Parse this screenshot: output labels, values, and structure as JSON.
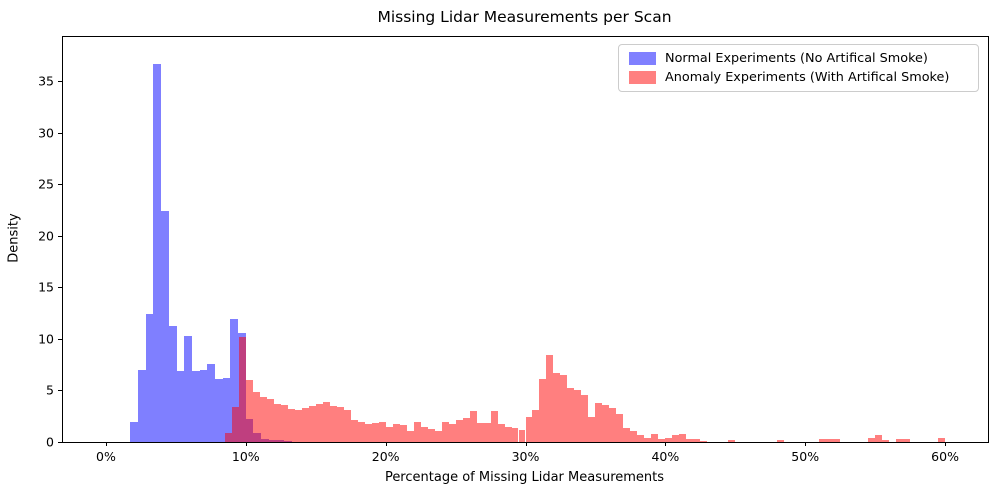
{
  "title": "Missing Lidar Measurements per Scan",
  "axes": {
    "xlabel": "Percentage of Missing Lidar Measurements",
    "ylabel": "Density",
    "x_ticks": [
      {
        "label": "0%",
        "value": 0
      },
      {
        "label": "10%",
        "value": 10
      },
      {
        "label": "20%",
        "value": 20
      },
      {
        "label": "30%",
        "value": 30
      },
      {
        "label": "40%",
        "value": 40
      },
      {
        "label": "50%",
        "value": 50
      },
      {
        "label": "60%",
        "value": 60
      }
    ],
    "y_ticks": [
      {
        "label": "0",
        "value": 0
      },
      {
        "label": "5",
        "value": 5
      },
      {
        "label": "10",
        "value": 10
      },
      {
        "label": "15",
        "value": 15
      },
      {
        "label": "20",
        "value": 20
      },
      {
        "label": "25",
        "value": 25
      },
      {
        "label": "30",
        "value": 30
      },
      {
        "label": "35",
        "value": 35
      }
    ]
  },
  "legend": {
    "items": [
      {
        "label": "Normal Experiments (No Artifical Smoke)",
        "color": "#8080ff"
      },
      {
        "label": "Anomaly Experiments (With Artifical Smoke)",
        "color": "#ff8080"
      }
    ]
  },
  "colors": {
    "normal_fill": "rgba(0,0,255,0.5)",
    "anomaly_fill": "rgba(255,0,0,0.5)",
    "overlap_appearance": "#bf4080",
    "normal_legend": "#8080ff",
    "anomaly_legend": "#ff8080"
  },
  "chart_data": {
    "type": "bar",
    "subtype": "histogram-density-overlaid",
    "title": "Missing Lidar Measurements per Scan",
    "xlabel": "Percentage of Missing Lidar Measurements",
    "ylabel": "Density",
    "xlim": [
      -3.07,
      63.07
    ],
    "ylim": [
      0,
      39.27
    ],
    "grid": false,
    "legend_position": "upper right",
    "x_unit": "percent",
    "series": [
      {
        "name": "Normal Experiments (No Artifical Smoke)",
        "color": "rgba(0,0,255,0.5)",
        "bin_start": 1.75,
        "bin_width": 0.55,
        "densities": [
          1.9,
          7.0,
          12.4,
          36.7,
          22.4,
          11.2,
          6.9,
          10.3,
          6.9,
          7.0,
          7.6,
          6.1,
          6.2,
          11.9,
          10.6,
          2.2,
          0.9,
          0.3,
          0.15,
          0.15,
          0.1
        ]
      },
      {
        "name": "Anomaly Experiments (With Artifical Smoke)",
        "color": "rgba(255,0,0,0.5)",
        "bin_start": 8.5,
        "bin_width": 0.5,
        "densities": [
          0.9,
          3.4,
          10.2,
          6.0,
          4.8,
          4.4,
          4.2,
          3.7,
          3.6,
          3.2,
          3.1,
          3.3,
          3.5,
          3.7,
          3.9,
          3.5,
          3.4,
          3.1,
          2.1,
          1.9,
          1.7,
          1.8,
          1.9,
          1.5,
          1.7,
          1.6,
          1.1,
          1.9,
          1.5,
          1.3,
          1.1,
          1.9,
          1.7,
          2.1,
          2.3,
          3.0,
          1.8,
          1.8,
          3.0,
          1.7,
          1.5,
          1.4,
          1.2,
          2.4,
          3.1,
          6.1,
          8.4,
          6.7,
          6.5,
          5.2,
          5.0,
          4.6,
          2.4,
          3.8,
          3.6,
          3.3,
          2.7,
          1.4,
          1.1,
          0.7,
          0.4,
          0.75,
          0.25,
          0.4,
          0.65,
          0.75,
          0.3,
          0.3,
          0.1,
          0,
          0,
          0,
          0.15,
          0,
          0,
          0,
          0,
          0,
          0,
          0.15,
          0,
          0,
          0,
          0,
          0,
          0.25,
          0.3,
          0.3,
          0,
          0,
          0,
          0,
          0.4,
          0.65,
          0.2,
          0,
          0.3,
          0.3,
          0,
          0,
          0,
          0,
          0.4
        ]
      }
    ]
  }
}
